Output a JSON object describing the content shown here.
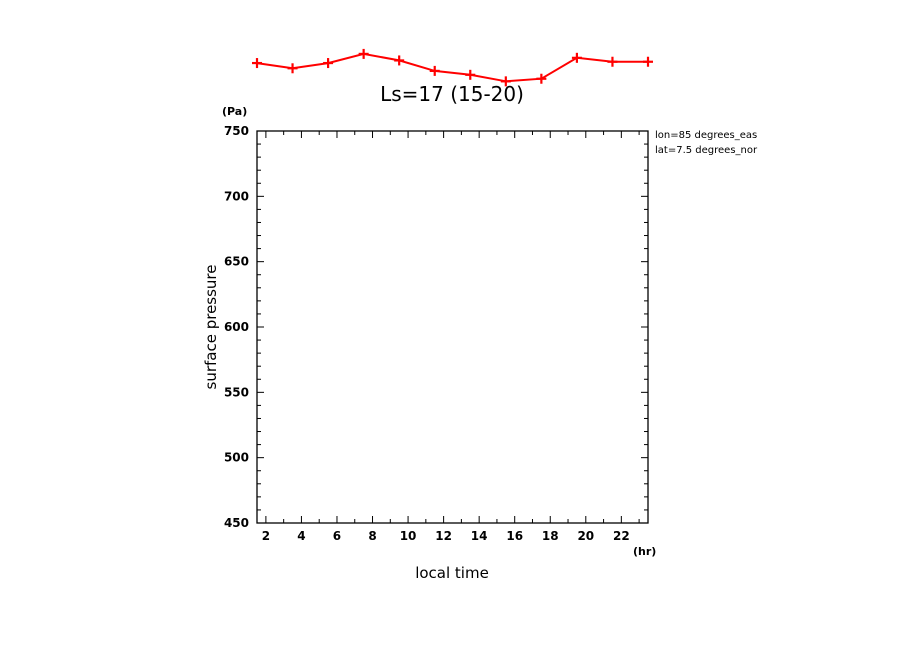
{
  "chart_data": {
    "type": "line",
    "title": "Ls=17 (15-20)",
    "xlabel": "local time",
    "ylabel": "surface pressure",
    "x_unit": "(hr)",
    "y_unit": "(Pa)",
    "xlim": [
      1.5,
      23.5
    ],
    "ylim": [
      450,
      750
    ],
    "xticks": [
      "2",
      "4",
      "6",
      "8",
      "10",
      "12",
      "14",
      "16",
      "18",
      "20",
      "22"
    ],
    "yticks": [
      "450",
      "500",
      "550",
      "600",
      "650",
      "700",
      "750"
    ],
    "grid": false,
    "annotations": [
      "lon=85 degrees_eas",
      "lat=7.5 degrees_nor"
    ],
    "series": [
      {
        "color": "#ff0000",
        "marker": "plus",
        "x": [
          1.5,
          3.5,
          5.5,
          7.5,
          9.5,
          11.5,
          13.5,
          15.5,
          17.5,
          19.5,
          21.5,
          23.5
        ],
        "y": [
          802,
          798,
          802,
          809,
          804,
          796,
          793,
          788,
          790,
          806,
          803,
          803
        ]
      }
    ]
  }
}
